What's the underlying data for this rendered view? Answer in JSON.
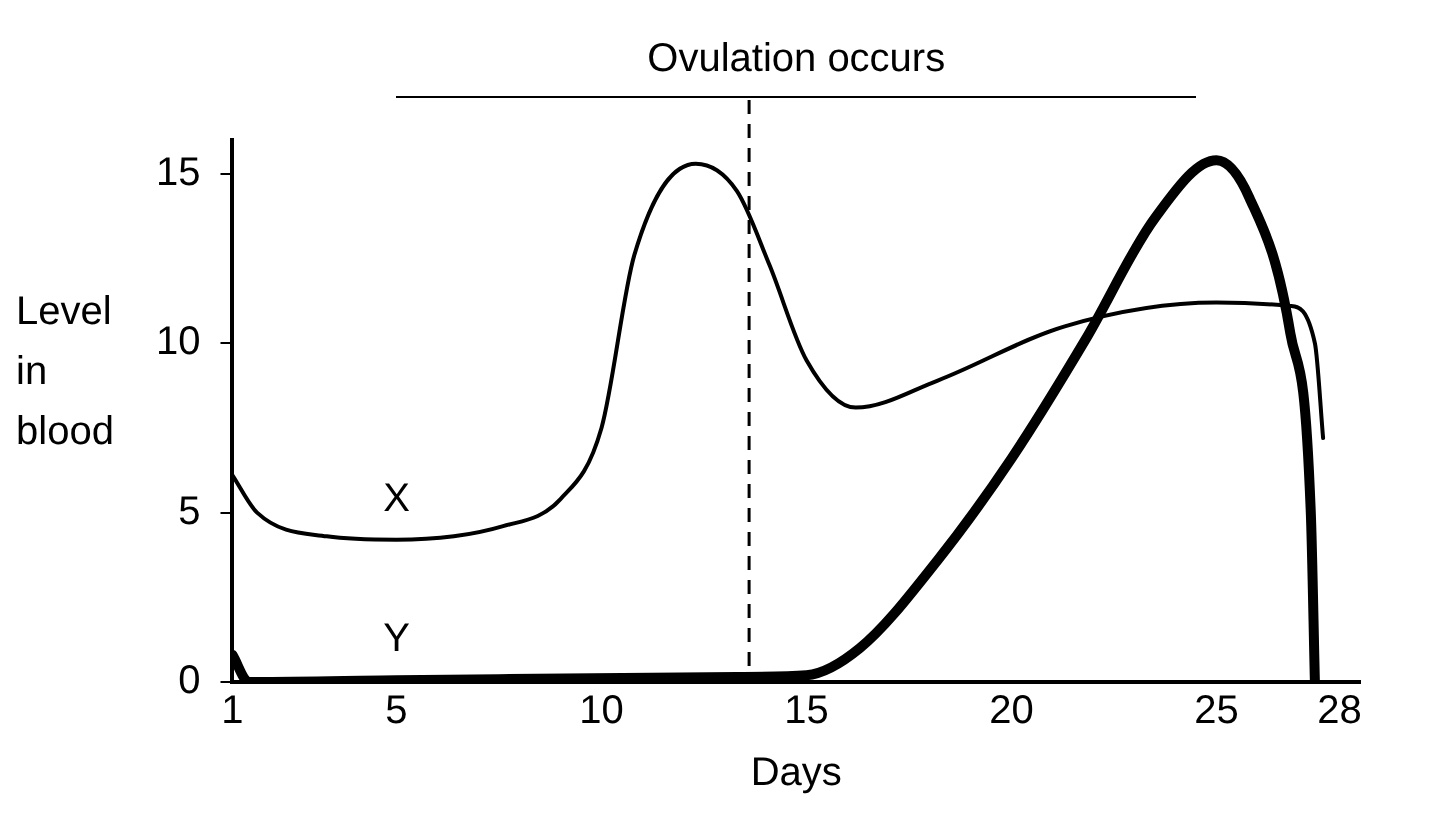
{
  "chart_data": {
    "type": "line",
    "xlabel": "Days",
    "ylabel": "Level in blood",
    "xlim": [
      1,
      28.5
    ],
    "xticks": [
      1,
      5,
      10,
      15,
      20,
      25,
      28
    ],
    "ylim": [
      0,
      16
    ],
    "yticks": [
      0,
      5,
      10,
      15
    ],
    "grid": false,
    "legend": false,
    "marker": "none",
    "series": [
      {
        "name": "X",
        "color": "#000000",
        "x": [
          1,
          1.6,
          3.3,
          5,
          7.6,
          9,
          10,
          10.8,
          12.3,
          13.3,
          14.1,
          15,
          16.2,
          18.2,
          21.3,
          25,
          26.8,
          27.4,
          27.6
        ],
        "values": [
          6.1,
          5.0,
          4.3,
          4.2,
          4.6,
          5.4,
          7.5,
          12.6,
          15.3,
          14.5,
          12.3,
          9.5,
          8.1,
          8.9,
          10.5,
          11.2,
          11.1,
          10,
          7.2
        ]
      },
      {
        "name": "Y",
        "color": "#000000",
        "x": [
          1,
          1.4,
          5,
          13.3,
          15,
          16.3,
          18.2,
          20,
          21.8,
          23.5,
          25,
          25.8,
          26.8,
          27.3,
          27.4
        ],
        "values": [
          0.8,
          0,
          0.05,
          0.15,
          0.2,
          1.0,
          3.6,
          6.6,
          10.1,
          13.7,
          15.4,
          14.3,
          10.3,
          5.0,
          0
        ]
      }
    ],
    "ref_lines": [
      {
        "axis": "x",
        "value": 13.6,
        "line_style": "dashed",
        "color": "#000000"
      }
    ],
    "annotations": [
      "Ovulation occurs"
    ]
  }
}
